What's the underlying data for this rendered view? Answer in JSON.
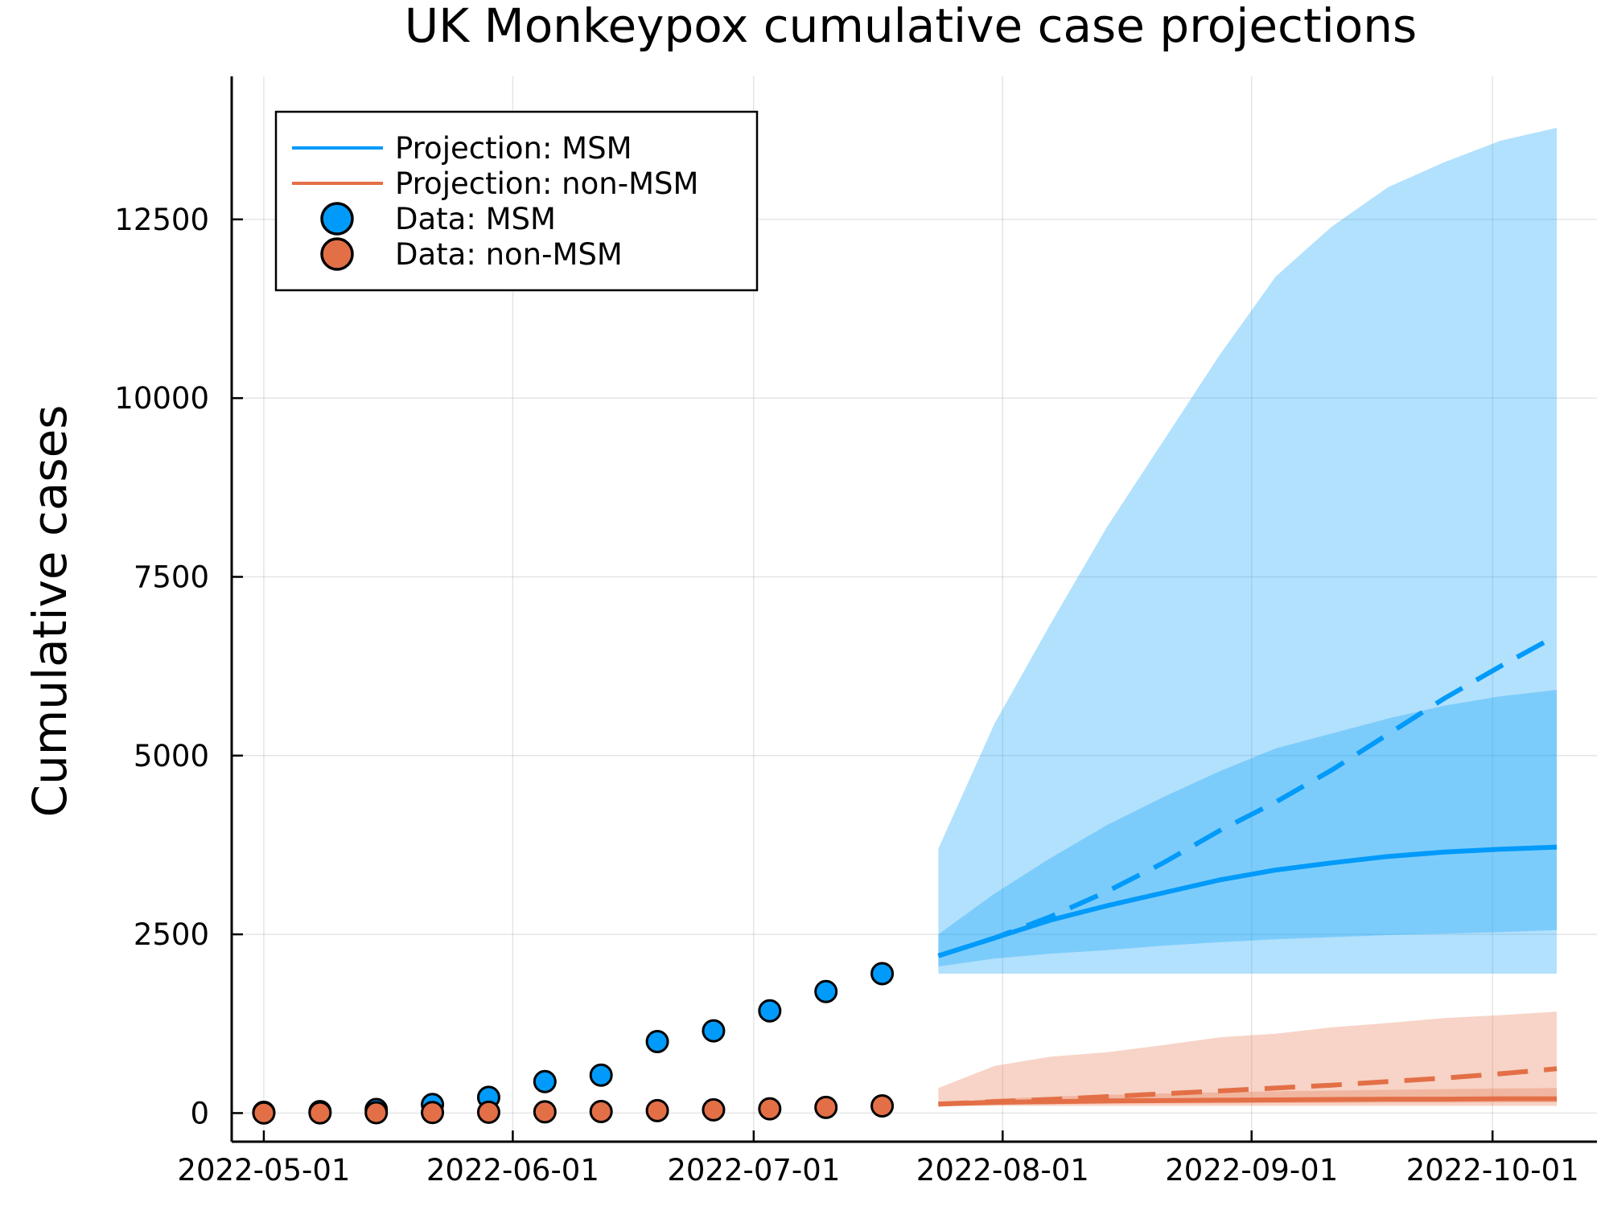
{
  "chart_data": {
    "type": "line",
    "title": "UK Monkeypox cumulative case projections",
    "xlabel": "",
    "ylabel": "Cumulative cases",
    "xlim": [
      "2022-04-27",
      "2022-10-14"
    ],
    "ylim": [
      -400,
      14500
    ],
    "grid": true,
    "legend_position": "top-left",
    "x_ticks": [
      "2022-05-01",
      "2022-06-01",
      "2022-07-01",
      "2022-08-01",
      "2022-09-01",
      "2022-10-01"
    ],
    "y_ticks": [
      0,
      2500,
      5000,
      7500,
      10000,
      12500
    ],
    "legend": [
      {
        "label": "Projection: MSM",
        "kind": "line",
        "color": "#009AFA"
      },
      {
        "label": "Projection: non-MSM",
        "kind": "line",
        "color": "#E36F47"
      },
      {
        "label": "Data: MSM",
        "kind": "marker",
        "color": "#009AFA"
      },
      {
        "label": "Data: non-MSM",
        "kind": "marker",
        "color": "#E36F47"
      }
    ],
    "data_dates": [
      "2022-05-01",
      "2022-05-08",
      "2022-05-15",
      "2022-05-22",
      "2022-05-29",
      "2022-06-05",
      "2022-06-12",
      "2022-06-19",
      "2022-06-26",
      "2022-07-03",
      "2022-07-10",
      "2022-07-17"
    ],
    "data_msm": [
      10,
      20,
      50,
      120,
      220,
      440,
      530,
      1000,
      1150,
      1430,
      1700,
      1950
    ],
    "data_non_msm": [
      2,
      3,
      5,
      8,
      12,
      18,
      22,
      35,
      45,
      60,
      80,
      100
    ],
    "projection_dates": [
      "2022-07-24",
      "2022-07-31",
      "2022-08-07",
      "2022-08-14",
      "2022-08-21",
      "2022-08-28",
      "2022-09-04",
      "2022-09-11",
      "2022-09-18",
      "2022-09-25",
      "2022-10-02",
      "2022-10-09"
    ],
    "msm_median": [
      2200,
      2450,
      2700,
      2900,
      3080,
      3260,
      3400,
      3500,
      3590,
      3650,
      3690,
      3720
    ],
    "msm_dashed": [
      2200,
      2450,
      2750,
      3100,
      3500,
      3950,
      4350,
      4800,
      5300,
      5800,
      6250,
      6680
    ],
    "msm_inner_lo": [
      2050,
      2160,
      2230,
      2280,
      2340,
      2390,
      2430,
      2460,
      2490,
      2510,
      2530,
      2560
    ],
    "msm_inner_hi": [
      2500,
      3070,
      3570,
      4030,
      4420,
      4780,
      5100,
      5310,
      5520,
      5700,
      5830,
      5920
    ],
    "msm_outer_lo": [
      1950,
      1950,
      1950,
      1950,
      1950,
      1950,
      1950,
      1950,
      1950,
      1950,
      1950,
      1950
    ],
    "msm_outer_hi": [
      3700,
      5450,
      6850,
      8200,
      9400,
      10600,
      11700,
      12400,
      12950,
      13300,
      13600,
      13780
    ],
    "non_msm_median": [
      125,
      150,
      160,
      170,
      175,
      180,
      185,
      190,
      195,
      195,
      200,
      200
    ],
    "non_msm_dashed": [
      125,
      160,
      190,
      230,
      270,
      310,
      350,
      390,
      440,
      490,
      550,
      620
    ],
    "non_msm_inner_lo": [
      110,
      120,
      125,
      130,
      135,
      135,
      140,
      140,
      145,
      145,
      150,
      150
    ],
    "non_msm_inner_hi": [
      140,
      200,
      230,
      255,
      275,
      290,
      305,
      315,
      325,
      335,
      345,
      350
    ],
    "non_msm_outer_lo": [
      100,
      100,
      100,
      100,
      100,
      100,
      100,
      100,
      100,
      100,
      100,
      100
    ],
    "non_msm_outer_hi": [
      350,
      660,
      790,
      850,
      950,
      1060,
      1110,
      1200,
      1260,
      1330,
      1370,
      1420
    ]
  }
}
